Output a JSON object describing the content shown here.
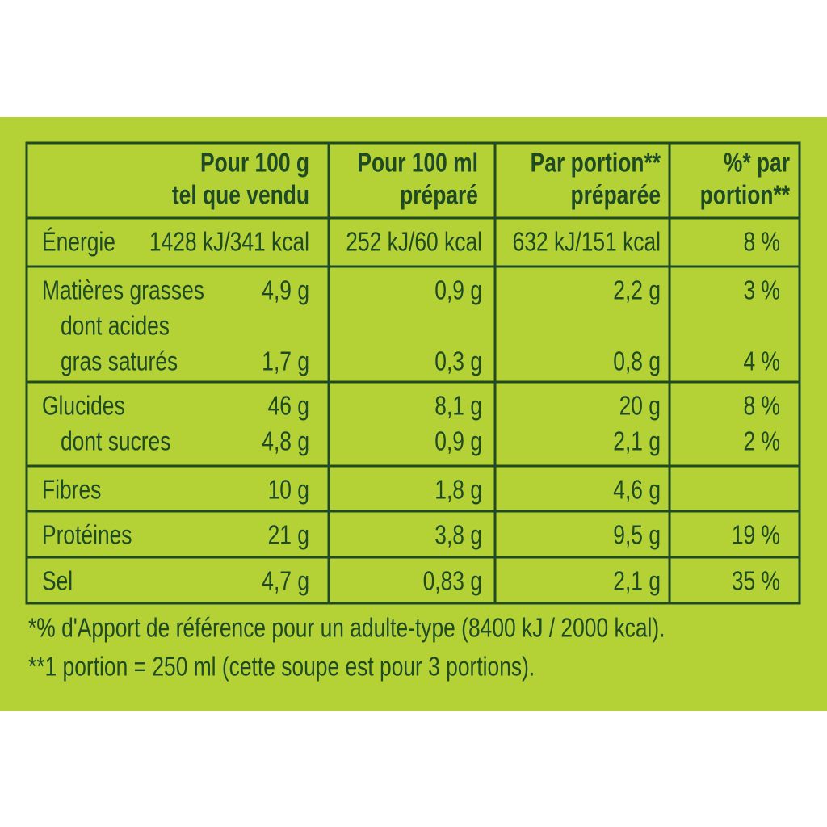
{
  "table": {
    "header": [
      [
        "Pour 100 g",
        "tel que vendu"
      ],
      [
        "Pour 100 ml",
        "préparé"
      ],
      [
        "Par portion**",
        "préparée"
      ],
      [
        "%* par",
        "portion**"
      ]
    ],
    "rows": [
      {
        "lines": [
          {
            "label": "Énergie",
            "cells": [
              "1428 kJ/341 kcal",
              "252 kJ/60 kcal",
              "632 kJ/151 kcal",
              "8 %"
            ]
          }
        ]
      },
      {
        "lines": [
          {
            "label": "Matières grasses",
            "cells": [
              "4,9 g",
              "0,9 g",
              "2,2 g",
              "3 %"
            ]
          },
          {
            "label": "dont acides",
            "cells": [
              null,
              null,
              null,
              null
            ]
          },
          {
            "label": "gras saturés",
            "cells": [
              "1,7 g",
              "0,3 g",
              "0,8 g",
              "4 %"
            ]
          }
        ]
      },
      {
        "lines": [
          {
            "label": "Glucides",
            "cells": [
              "46 g",
              "8,1 g",
              "20 g",
              "8 %"
            ]
          },
          {
            "label": "dont sucres",
            "cells": [
              "4,8 g",
              "0,9 g",
              "2,1 g",
              "2 %"
            ]
          }
        ]
      },
      {
        "lines": [
          {
            "label": "Fibres",
            "cells": [
              "10 g",
              "1,8 g",
              "4,6 g",
              null
            ]
          }
        ]
      },
      {
        "lines": [
          {
            "label": "Protéines",
            "cells": [
              "21 g",
              "3,8 g",
              "9,5 g",
              "19 %"
            ]
          }
        ]
      },
      {
        "lines": [
          {
            "label": "Sel",
            "cells": [
              "4,7 g",
              "0,83 g",
              "2,1 g",
              "35 %"
            ]
          }
        ]
      }
    ]
  },
  "footnotes": [
    "*% d'Apport de référence pour un adulte-type (8400 kJ / 2000 kcal).",
    "**1 portion = 250 ml (cette soupe est pour 3 portions)."
  ]
}
